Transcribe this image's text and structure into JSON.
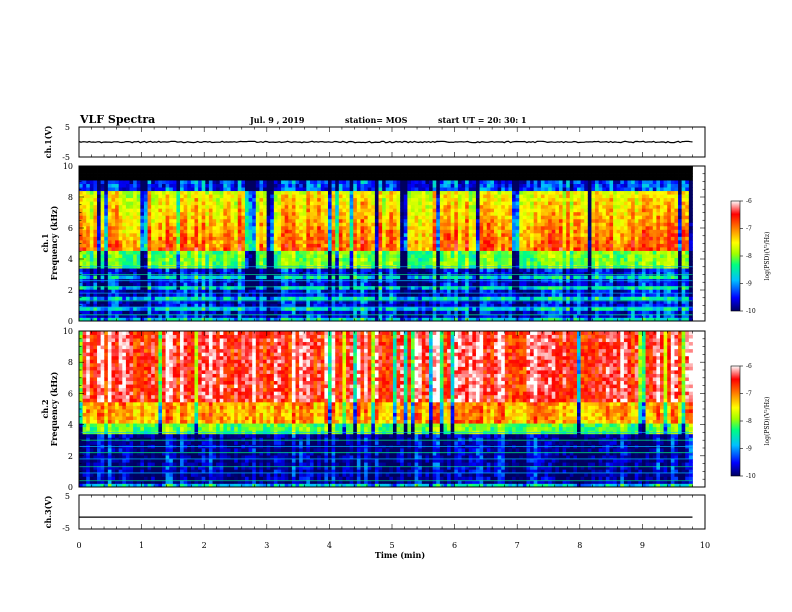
{
  "header": {
    "title": "VLF Spectra",
    "date": "Jul. 9 , 2019",
    "station": "station= MOS",
    "start": "start UT =  20: 30: 1"
  },
  "chart_data": {
    "type": "heatmap",
    "x": {
      "label": "Time (min)",
      "range": [
        0,
        10
      ],
      "ticks": [
        "0",
        "1",
        "2",
        "3",
        "4",
        "5",
        "6",
        "7",
        "8",
        "9",
        "10"
      ]
    },
    "panels": [
      {
        "id": "ch1-waveform",
        "type": "line",
        "ylabel": "ch.1(V)",
        "ylim": [
          -5,
          5
        ],
        "ytick_labels": [
          "5",
          "-5"
        ],
        "trace_level": 0
      },
      {
        "id": "ch1-spectrogram",
        "type": "heatmap",
        "ylabel_top": "ch.1",
        "ylabel": "Frequency (kHz)",
        "ylim": [
          0,
          10
        ],
        "ytick_labels": [
          "0",
          "2",
          "4",
          "6",
          "8",
          "10"
        ],
        "colorbar": {
          "label": "log(PSD)(V²/Hz)",
          "range": [
            -10,
            -6
          ],
          "tick_labels": [
            "-6",
            "-7",
            "-8",
            "-9",
            "-10"
          ]
        }
      },
      {
        "id": "ch2-spectrogram",
        "type": "heatmap",
        "ylabel_top": "ch.2",
        "ylabel": "Frequency (kHz)",
        "ylim": [
          0,
          10
        ],
        "ytick_labels": [
          "0",
          "2",
          "4",
          "6",
          "8",
          "10"
        ],
        "colorbar": {
          "label": "log(PSD)(V²/Hz)",
          "range": [
            -10,
            -6
          ],
          "tick_labels": [
            "-6",
            "-7",
            "-8",
            "-9",
            "-10"
          ]
        }
      },
      {
        "id": "ch3-waveform",
        "type": "line",
        "ylabel": "ch.3(V)",
        "ylim": [
          -5,
          5
        ],
        "ytick_labels": [
          "5",
          "-5"
        ],
        "trace_level": -1.5
      }
    ],
    "data_end_min": 9.8,
    "colormap": [
      "#000060",
      "#0000ff",
      "#00c0ff",
      "#00ff80",
      "#a0ff00",
      "#ffff00",
      "#ff8000",
      "#ff0000",
      "#ffffff"
    ]
  }
}
